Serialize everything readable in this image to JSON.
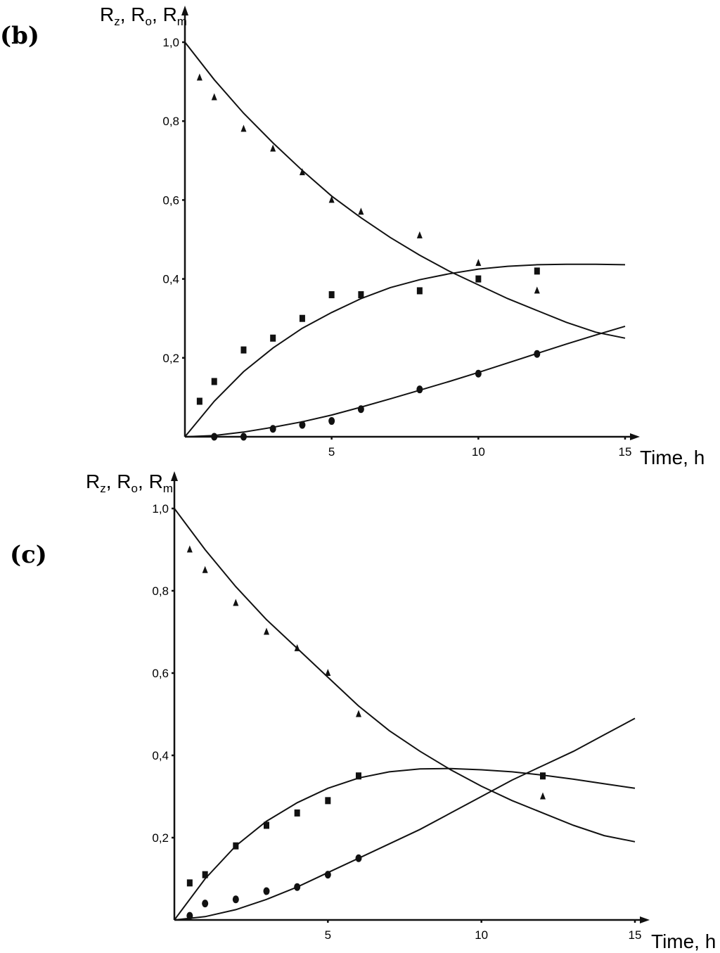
{
  "chart_data": [
    {
      "panel_label": "(b)",
      "type": "scatter",
      "ylabel": "Rz, Ro, Rm",
      "ylabel_parts": [
        {
          "main": "R",
          "sub": "z",
          "sep": ", "
        },
        {
          "main": "R",
          "sub": "o",
          "sep": ", "
        },
        {
          "main": "R",
          "sub": "m",
          "sep": ""
        }
      ],
      "xlabel": "Time, h",
      "xlim": [
        0,
        15
      ],
      "ylim": [
        0,
        1.0
      ],
      "xticks": [
        {
          "value": 5,
          "label": "5"
        },
        {
          "value": 10,
          "label": "10"
        },
        {
          "value": 15,
          "label": "15"
        }
      ],
      "yticks": [
        {
          "value": 0.2,
          "label": "0,2"
        },
        {
          "value": 0.4,
          "label": "0,4"
        },
        {
          "value": 0.6,
          "label": "0,6"
        },
        {
          "value": 0.8,
          "label": "0,8"
        },
        {
          "value": 1.0,
          "label": "1,0"
        }
      ],
      "grid": false,
      "series": [
        {
          "marker": "triangle",
          "points": [
            [
              0.5,
              0.91
            ],
            [
              1,
              0.86
            ],
            [
              2,
              0.78
            ],
            [
              3,
              0.73
            ],
            [
              4,
              0.67
            ],
            [
              5,
              0.6
            ],
            [
              6,
              0.57
            ],
            [
              8,
              0.51
            ],
            [
              10,
              0.44
            ],
            [
              12,
              0.37
            ]
          ],
          "curve": [
            [
              0,
              1.0
            ],
            [
              1,
              0.905
            ],
            [
              2,
              0.82
            ],
            [
              3,
              0.745
            ],
            [
              4,
              0.675
            ],
            [
              5,
              0.61
            ],
            [
              6,
              0.555
            ],
            [
              7,
              0.505
            ],
            [
              8,
              0.46
            ],
            [
              9,
              0.42
            ],
            [
              10,
              0.385
            ],
            [
              11,
              0.35
            ],
            [
              12,
              0.32
            ],
            [
              13,
              0.29
            ],
            [
              14,
              0.265
            ],
            [
              15,
              0.25
            ]
          ]
        },
        {
          "marker": "square",
          "points": [
            [
              0.5,
              0.09
            ],
            [
              1,
              0.14
            ],
            [
              2,
              0.22
            ],
            [
              3,
              0.25
            ],
            [
              4,
              0.3
            ],
            [
              5,
              0.36
            ],
            [
              6,
              0.36
            ],
            [
              8,
              0.37
            ],
            [
              10,
              0.4
            ],
            [
              12,
              0.42
            ]
          ],
          "curve": [
            [
              0,
              0.0
            ],
            [
              1,
              0.09
            ],
            [
              2,
              0.165
            ],
            [
              3,
              0.225
            ],
            [
              4,
              0.275
            ],
            [
              5,
              0.315
            ],
            [
              6,
              0.35
            ],
            [
              7,
              0.378
            ],
            [
              8,
              0.398
            ],
            [
              9,
              0.413
            ],
            [
              10,
              0.425
            ],
            [
              11,
              0.432
            ],
            [
              12,
              0.436
            ],
            [
              13,
              0.437
            ],
            [
              14,
              0.437
            ],
            [
              15,
              0.436
            ]
          ]
        },
        {
          "marker": "circle",
          "points": [
            [
              1,
              0.0
            ],
            [
              2,
              0.0
            ],
            [
              3,
              0.02
            ],
            [
              4,
              0.03
            ],
            [
              5,
              0.04
            ],
            [
              6,
              0.07
            ],
            [
              8,
              0.12
            ],
            [
              10,
              0.16
            ],
            [
              12,
              0.21
            ]
          ],
          "curve": [
            [
              0,
              0.0
            ],
            [
              1,
              0.003
            ],
            [
              2,
              0.012
            ],
            [
              3,
              0.024
            ],
            [
              4,
              0.038
            ],
            [
              5,
              0.055
            ],
            [
              6,
              0.075
            ],
            [
              7,
              0.096
            ],
            [
              8,
              0.118
            ],
            [
              9,
              0.14
            ],
            [
              10,
              0.163
            ],
            [
              11,
              0.187
            ],
            [
              12,
              0.211
            ],
            [
              13,
              0.235
            ],
            [
              14,
              0.258
            ],
            [
              15,
              0.28
            ]
          ]
        }
      ]
    },
    {
      "panel_label": "(c)",
      "type": "scatter",
      "ylabel": "Rz, Ro, Rm",
      "ylabel_parts": [
        {
          "main": "R",
          "sub": "z",
          "sep": ", "
        },
        {
          "main": "R",
          "sub": "o",
          "sep": ", "
        },
        {
          "main": "R",
          "sub": "m",
          "sep": ""
        }
      ],
      "xlabel": "Time, h",
      "xlim": [
        0,
        15
      ],
      "ylim": [
        0,
        1.0
      ],
      "xticks": [
        {
          "value": 5,
          "label": "5"
        },
        {
          "value": 10,
          "label": "10"
        },
        {
          "value": 15,
          "label": "15"
        }
      ],
      "yticks": [
        {
          "value": 0.2,
          "label": "0,2"
        },
        {
          "value": 0.4,
          "label": "0,4"
        },
        {
          "value": 0.6,
          "label": "0,6"
        },
        {
          "value": 0.8,
          "label": "0,8"
        },
        {
          "value": 1.0,
          "label": "1,0"
        }
      ],
      "grid": false,
      "series": [
        {
          "marker": "triangle",
          "points": [
            [
              0.5,
              0.9
            ],
            [
              1,
              0.85
            ],
            [
              2,
              0.77
            ],
            [
              3,
              0.7
            ],
            [
              4,
              0.66
            ],
            [
              5,
              0.6
            ],
            [
              6,
              0.5
            ],
            [
              12,
              0.3
            ]
          ],
          "curve": [
            [
              0,
              1.0
            ],
            [
              1,
              0.9
            ],
            [
              2,
              0.81
            ],
            [
              3,
              0.73
            ],
            [
              4,
              0.66
            ],
            [
              5,
              0.59
            ],
            [
              6,
              0.52
            ],
            [
              7,
              0.46
            ],
            [
              8,
              0.41
            ],
            [
              9,
              0.365
            ],
            [
              10,
              0.325
            ],
            [
              11,
              0.29
            ],
            [
              12,
              0.26
            ],
            [
              13,
              0.23
            ],
            [
              14,
              0.205
            ],
            [
              15,
              0.19
            ]
          ]
        },
        {
          "marker": "square",
          "points": [
            [
              0.5,
              0.09
            ],
            [
              1,
              0.11
            ],
            [
              2,
              0.18
            ],
            [
              3,
              0.23
            ],
            [
              4,
              0.26
            ],
            [
              5,
              0.29
            ],
            [
              6,
              0.35
            ],
            [
              12,
              0.35
            ]
          ],
          "curve": [
            [
              0,
              0.0
            ],
            [
              1,
              0.1
            ],
            [
              2,
              0.18
            ],
            [
              3,
              0.24
            ],
            [
              4,
              0.285
            ],
            [
              5,
              0.32
            ],
            [
              6,
              0.345
            ],
            [
              7,
              0.36
            ],
            [
              8,
              0.367
            ],
            [
              9,
              0.368
            ],
            [
              10,
              0.365
            ],
            [
              11,
              0.36
            ],
            [
              12,
              0.352
            ],
            [
              13,
              0.342
            ],
            [
              14,
              0.331
            ],
            [
              15,
              0.32
            ]
          ]
        },
        {
          "marker": "circle",
          "points": [
            [
              0.5,
              0.01
            ],
            [
              1,
              0.04
            ],
            [
              2,
              0.05
            ],
            [
              3,
              0.07
            ],
            [
              4,
              0.08
            ],
            [
              5,
              0.11
            ],
            [
              6,
              0.15
            ]
          ],
          "curve": [
            [
              0,
              0.0
            ],
            [
              1,
              0.008
            ],
            [
              2,
              0.025
            ],
            [
              3,
              0.05
            ],
            [
              4,
              0.08
            ],
            [
              5,
              0.115
            ],
            [
              6,
              0.15
            ],
            [
              7,
              0.185
            ],
            [
              8,
              0.22
            ],
            [
              9,
              0.26
            ],
            [
              10,
              0.3
            ],
            [
              11,
              0.34
            ],
            [
              12,
              0.375
            ],
            [
              13,
              0.41
            ],
            [
              14,
              0.45
            ],
            [
              15,
              0.49
            ]
          ]
        }
      ]
    }
  ]
}
